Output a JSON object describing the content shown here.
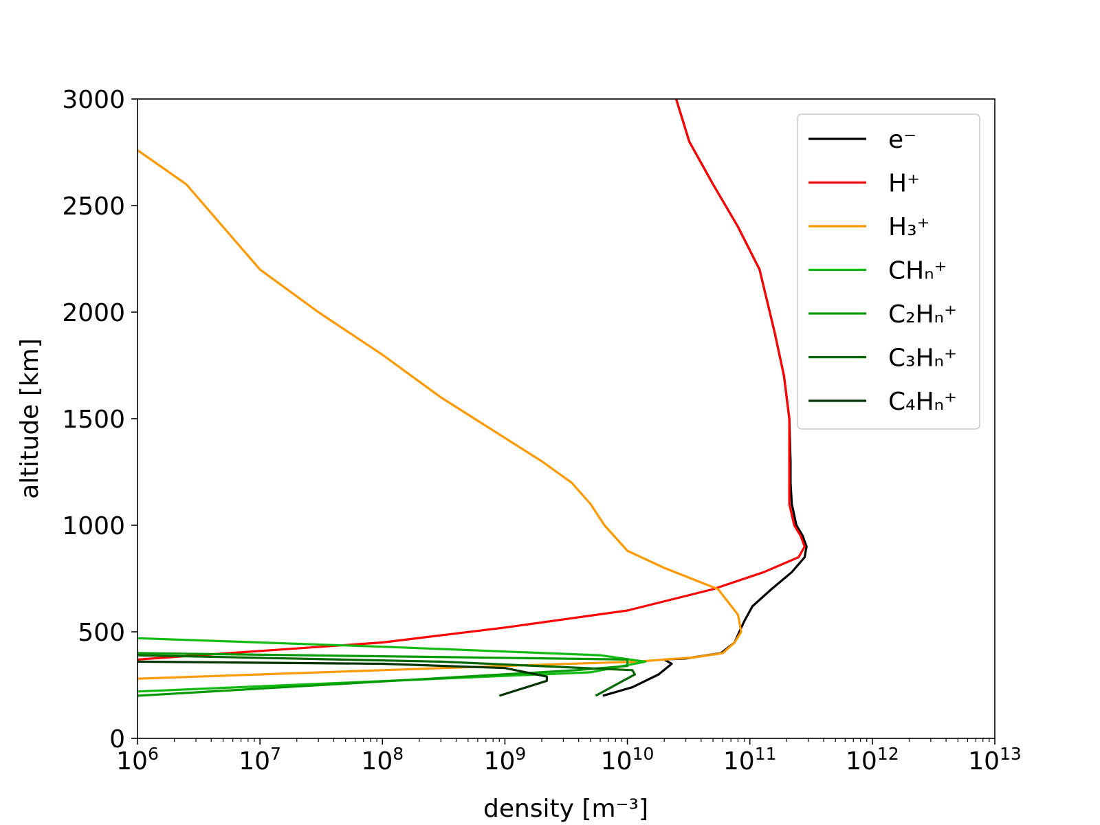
{
  "chart_data": {
    "type": "line",
    "title": "",
    "xlabel": "density [m⁻³]",
    "ylabel": "altitude [km]",
    "x_scale": "log",
    "xlim": [
      1000000.0,
      10000000000000.0
    ],
    "ylim": [
      0,
      3000
    ],
    "x_tick_labels": [
      {
        "base": "10",
        "exp": "6"
      },
      {
        "base": "10",
        "exp": "7"
      },
      {
        "base": "10",
        "exp": "8"
      },
      {
        "base": "10",
        "exp": "9"
      },
      {
        "base": "10",
        "exp": "10"
      },
      {
        "base": "10",
        "exp": "11"
      },
      {
        "base": "10",
        "exp": "12"
      },
      {
        "base": "10",
        "exp": "13"
      }
    ],
    "y_ticks": [
      0,
      500,
      1000,
      1500,
      2000,
      2500,
      3000
    ],
    "y_tick_labels": [
      "0",
      "500",
      "1000",
      "1500",
      "2000",
      "2500",
      "3000"
    ],
    "grid": false,
    "legend_position": "top-right",
    "series": [
      {
        "name": "e⁻",
        "color": "#000000",
        "points": [
          [
            6300000000.0,
            200
          ],
          [
            11000000000.0,
            240
          ],
          [
            18000000000.0,
            300
          ],
          [
            23000000000.0,
            350
          ],
          [
            20000000000.0,
            370
          ],
          [
            30000000000.0,
            375
          ],
          [
            58000000000.0,
            400
          ],
          [
            75000000000.0,
            450
          ],
          [
            82000000000.0,
            500
          ],
          [
            90000000000.0,
            550
          ],
          [
            105000000000.0,
            620
          ],
          [
            150000000000.0,
            700
          ],
          [
            220000000000.0,
            780
          ],
          [
            280000000000.0,
            850
          ],
          [
            290000000000.0,
            900
          ],
          [
            270000000000.0,
            950
          ],
          [
            240000000000.0,
            1000
          ],
          [
            220000000000.0,
            1100
          ],
          [
            215000000000.0,
            1200
          ],
          [
            215000000000.0,
            1300
          ],
          [
            210000000000.0,
            1500
          ],
          [
            190000000000.0,
            1700
          ],
          [
            160000000000.0,
            1900
          ],
          [
            120000000000.0,
            2200
          ],
          [
            80000000000.0,
            2400
          ],
          [
            50000000000.0,
            2600
          ],
          [
            32000000000.0,
            2800
          ],
          [
            25000000000.0,
            3000
          ]
        ]
      },
      {
        "name": "H⁺",
        "color": "#ff0000",
        "points": [
          [
            1000000.0,
            370
          ],
          [
            100000000.0,
            450
          ],
          [
            1000000000.0,
            520
          ],
          [
            10000000000.0,
            600
          ],
          [
            50000000000.0,
            700
          ],
          [
            130000000000.0,
            780
          ],
          [
            250000000000.0,
            850
          ],
          [
            280000000000.0,
            900
          ],
          [
            260000000000.0,
            950
          ],
          [
            230000000000.0,
            1000
          ],
          [
            210000000000.0,
            1100
          ],
          [
            210000000000.0,
            1200
          ],
          [
            210000000000.0,
            1300
          ],
          [
            210000000000.0,
            1500
          ],
          [
            190000000000.0,
            1700
          ],
          [
            160000000000.0,
            1900
          ],
          [
            120000000000.0,
            2200
          ],
          [
            80000000000.0,
            2400
          ],
          [
            50000000000.0,
            2600
          ],
          [
            32000000000.0,
            2800
          ],
          [
            25000000000.0,
            3000
          ]
        ]
      },
      {
        "name": "H₃⁺",
        "color": "#ff9900",
        "points": [
          [
            1000000.0,
            280
          ],
          [
            100000000.0,
            320
          ],
          [
            1000000000.0,
            340
          ],
          [
            12000000000.0,
            360
          ],
          [
            35000000000.0,
            380
          ],
          [
            60000000000.0,
            400
          ],
          [
            75000000000.0,
            450
          ],
          [
            85000000000.0,
            500
          ],
          [
            80000000000.0,
            580
          ],
          [
            55000000000.0,
            700
          ],
          [
            20000000000.0,
            800
          ],
          [
            10000000000.0,
            880
          ],
          [
            6500000000.0,
            1000
          ],
          [
            5000000000.0,
            1100
          ],
          [
            3500000000.0,
            1200
          ],
          [
            2000000000.0,
            1300
          ],
          [
            300000000.0,
            1600
          ],
          [
            100000000.0,
            1800
          ],
          [
            30000000.0,
            2000
          ],
          [
            10000000.0,
            2200
          ],
          [
            5000000.0,
            2400
          ],
          [
            2500000.0,
            2600
          ],
          [
            1000000.0,
            2760
          ]
        ]
      },
      {
        "name": "CHₙ⁺",
        "color": "#11bb11",
        "points": [
          [
            1000000.0,
            470
          ],
          [
            100000000.0,
            430
          ],
          [
            6000000000.0,
            390
          ],
          [
            14000000000.0,
            360
          ],
          [
            5000000000.0,
            310
          ],
          [
            1000000.0,
            220
          ]
        ]
      },
      {
        "name": "C₂Hₙ⁺",
        "color": "#009900",
        "points": [
          [
            1000000.0,
            400
          ],
          [
            500000000.0,
            380
          ],
          [
            10000000000.0,
            370
          ],
          [
            10000000000.0,
            340
          ],
          [
            3800000000.0,
            320
          ],
          [
            1000000.0,
            200
          ]
        ]
      },
      {
        "name": "C₃Hₙ⁺",
        "color": "#006600",
        "points": [
          [
            1000000.0,
            390
          ],
          [
            300000000.0,
            360
          ],
          [
            11000000000.0,
            320
          ],
          [
            11500000000.0,
            300
          ],
          [
            5500000000.0,
            200
          ]
        ]
      },
      {
        "name": "C₄Hₙ⁺",
        "color": "#003300",
        "points": [
          [
            1000000.0,
            360
          ],
          [
            100000000.0,
            350
          ],
          [
            1000000000.0,
            330
          ],
          [
            2200000000.0,
            290
          ],
          [
            2200000000.0,
            270
          ],
          [
            900000000.0,
            200
          ]
        ]
      }
    ]
  }
}
